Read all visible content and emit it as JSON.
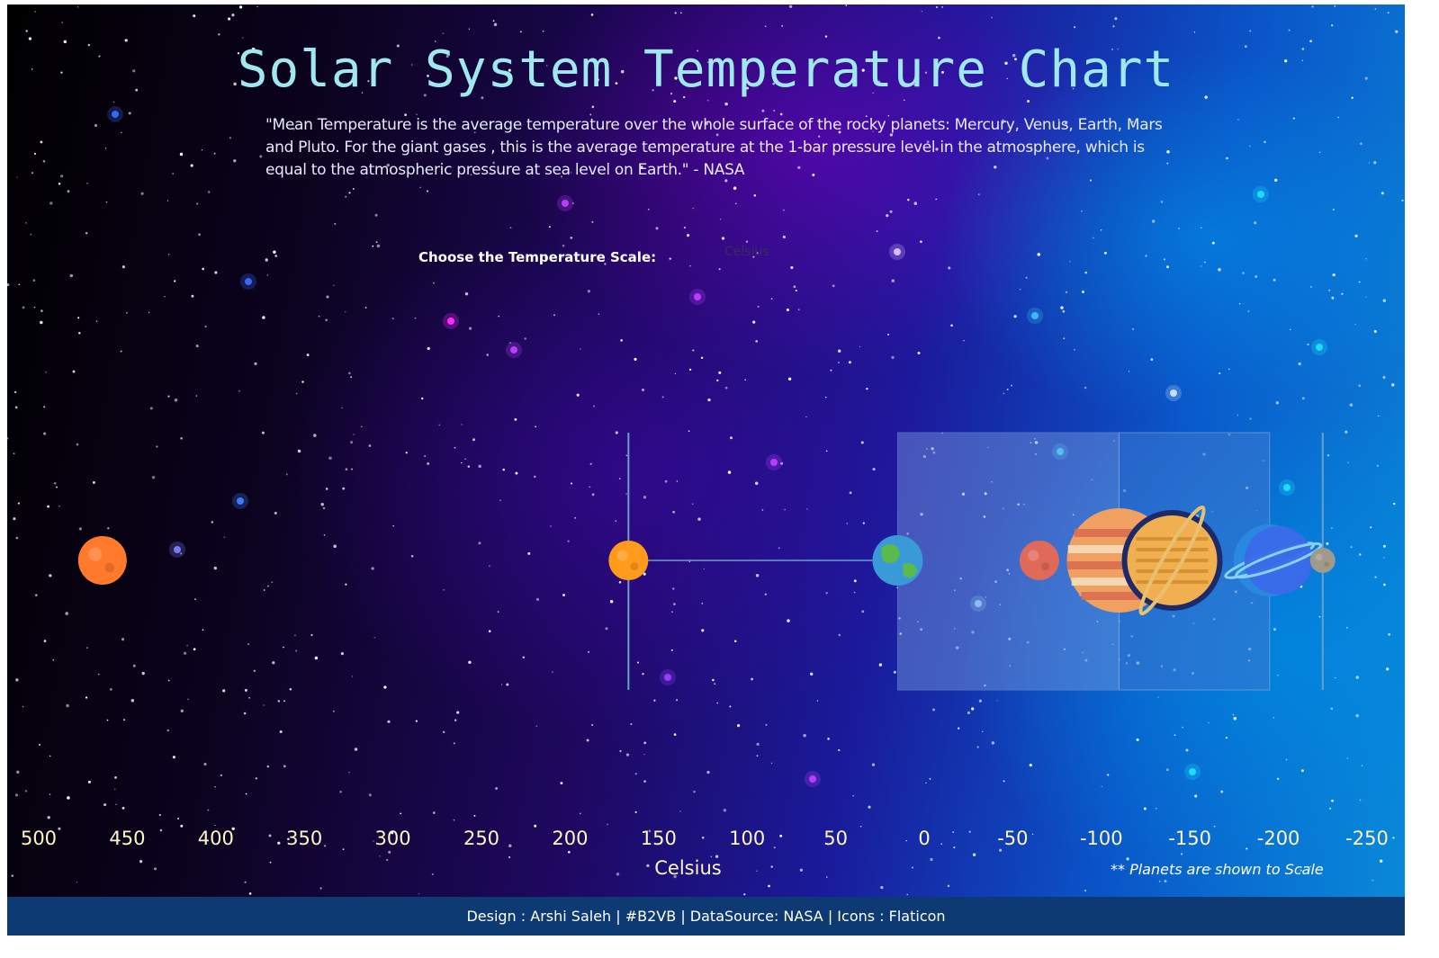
{
  "title": "Solar System Temperature Chart",
  "quote": "\"Mean Temperature is the average temperature over the whole surface of the rocky planets: Mercury, Venus, Earth, Mars and Pluto. For the giant gases , this is the average temperature at the 1-bar pressure level in the atmosphere, which is equal to the atmospheric pressure at sea level on Earth.\" - NASA",
  "scale_control": {
    "label": "Choose the Temperature Scale:",
    "selected": "Celsius"
  },
  "scale_note": "** Planets are shown to Scale",
  "footer": "Design : Arshi Saleh | #B2VB | DataSource: NASA | Icons : Flaticon",
  "colors": {
    "title": "#9ee8ee",
    "tick": "#fff6c8",
    "footer_bg": "#0d3a72",
    "reference_line": "#6aa0c8",
    "band_light": "#7a9ee0",
    "band_dark": "#3e78d0"
  },
  "chart_data": {
    "type": "scatter",
    "x_axis": {
      "label": "Celsius",
      "range": [
        500,
        -250
      ],
      "ticks": [
        500,
        450,
        400,
        350,
        300,
        250,
        200,
        150,
        100,
        50,
        0,
        -50,
        -100,
        -150,
        -200,
        -250
      ],
      "reversed": true
    },
    "reference_lines": [
      167,
      -225
    ],
    "connector": [
      167,
      15
    ],
    "bands": [
      {
        "from": 15,
        "to": -110
      },
      {
        "from": -110,
        "to": -195
      }
    ],
    "points": [
      {
        "planet": "Venus",
        "temp": 464,
        "icon": "venus-icon",
        "color": "#ff7a2a",
        "size": 27
      },
      {
        "planet": "Mercury",
        "temp": 167,
        "icon": "mercury-icon",
        "color": "#ff9a1a",
        "size": 22
      },
      {
        "planet": "Earth",
        "temp": 15,
        "icon": "earth-icon",
        "color": "#3a9ad8",
        "size": 28
      },
      {
        "planet": "Mars",
        "temp": -65,
        "icon": "mars-icon",
        "color": "#e06a5a",
        "size": 22
      },
      {
        "planet": "Jupiter",
        "temp": -110,
        "icon": "jupiter-icon",
        "color": "#f0a060",
        "size": 58
      },
      {
        "planet": "Saturn",
        "temp": -140,
        "icon": "saturn-icon",
        "color": "#f0b050",
        "size": 50
      },
      {
        "planet": "Uranus",
        "temp": -195,
        "icon": "uranus-icon",
        "color": "#2a8ae0",
        "size": 40
      },
      {
        "planet": "Neptune",
        "temp": -200,
        "icon": "neptune-icon",
        "color": "#3a6ae8",
        "size": 38
      },
      {
        "planet": "Pluto",
        "temp": -225,
        "icon": "pluto-icon",
        "color": "#a09a8a",
        "size": 14
      }
    ]
  }
}
